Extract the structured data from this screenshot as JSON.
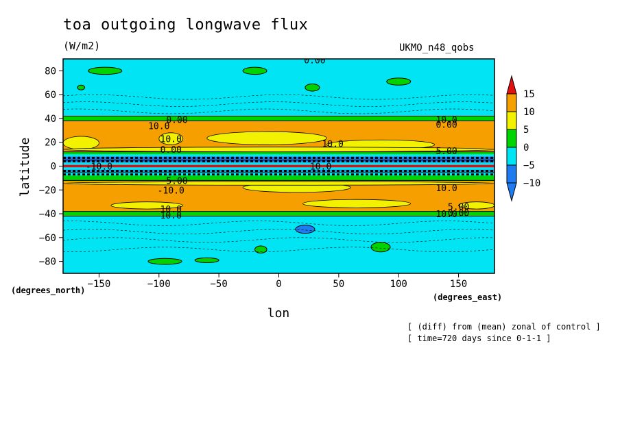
{
  "header": {
    "title": "toa outgoing longwave flux",
    "units": "(W/m2)",
    "model": "UKMO_n48_qobs"
  },
  "footer": {
    "note_line1": "[ (diff) from (mean) zonal of control ]",
    "note_line2": "[ time=720 days since 0-1-1 ]"
  },
  "chart_data": {
    "type": "contour",
    "title": "toa outgoing longwave flux",
    "units": "(W/m2)",
    "xlabel": "lon",
    "ylabel": "latitude",
    "x_units": "(degrees_east)",
    "y_units": "(degrees_north)",
    "xlim": [
      -180,
      180
    ],
    "ylim": [
      -90,
      90
    ],
    "x_ticks": [
      -150,
      -100,
      -50,
      0,
      50,
      100,
      150
    ],
    "y_ticks": [
      -80,
      -60,
      -40,
      -20,
      0,
      20,
      40,
      60,
      80
    ],
    "colorbar": {
      "levels": [
        -10,
        -5,
        0,
        5,
        10,
        15
      ],
      "colors": [
        "#1e7bf0",
        "#00e4f4",
        "#00d400",
        "#f2f200",
        "#f5a000",
        "#e41010"
      ],
      "extend": "both"
    },
    "latitude_bands_mean": [
      {
        "lat_from": 88,
        "lat_to": 42,
        "value_range": "-5 to 0"
      },
      {
        "lat_from": 42,
        "lat_to": 38,
        "value_range": "0 to 5"
      },
      {
        "lat_from": 38,
        "lat_to": 28,
        "value_range": "10 to 15"
      },
      {
        "lat_from": 28,
        "lat_to": 12,
        "value_range": "5 to 15"
      },
      {
        "lat_from": 12,
        "lat_to": 5,
        "value_range": "-10 to 0"
      },
      {
        "lat_from": 5,
        "lat_to": -5,
        "value_range": "below -10, up to 15 at equator"
      },
      {
        "lat_from": -5,
        "lat_to": -12,
        "value_range": "-10 to 0"
      },
      {
        "lat_from": -12,
        "lat_to": -38,
        "value_range": "5 to 15"
      },
      {
        "lat_from": -38,
        "lat_to": -42,
        "value_range": "0 to 5"
      },
      {
        "lat_from": -42,
        "lat_to": -88,
        "value_range": "-5 to 0"
      }
    ],
    "contour_labels": [
      "0.00",
      "0.00",
      "10.0",
      "10.0",
      "10.0",
      "10.0",
      "0.00",
      "5.00",
      "5.00",
      "10.0",
      "-10.0",
      "-10.0",
      "10.0",
      "5.00",
      "10.0",
      "10.0",
      "10.0",
      "0.00",
      "0.00"
    ]
  }
}
